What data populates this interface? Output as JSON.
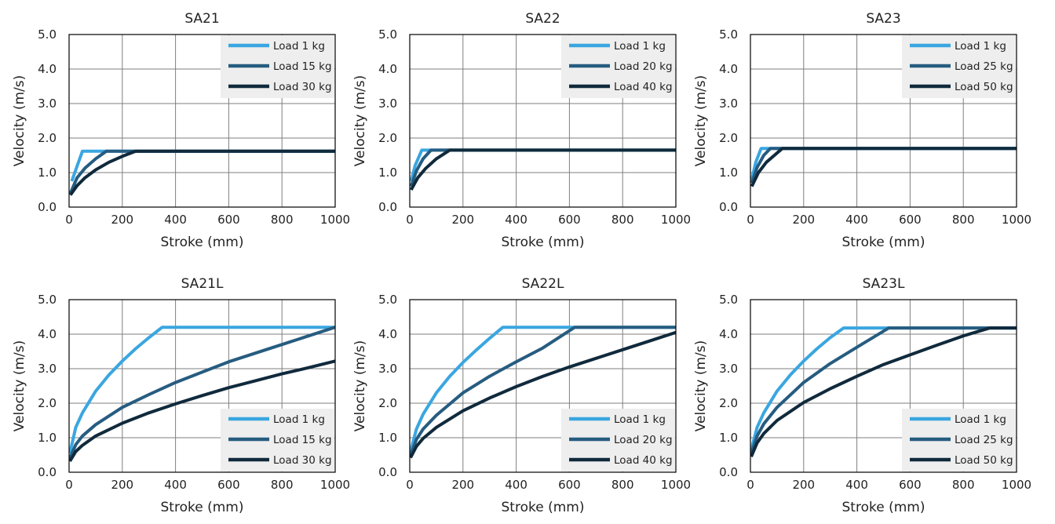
{
  "colors": {
    "s1": "#3aa6e0",
    "s2": "#265c80",
    "s3": "#102a3c"
  },
  "chart_data": [
    {
      "type": "line",
      "title": "SA21",
      "xlabel": "Stroke (mm)",
      "ylabel": "Velocity (m/s)",
      "xlim": [
        0,
        1000
      ],
      "ylim": [
        0,
        5
      ],
      "xticks": [
        "0",
        "200",
        "400",
        "600",
        "800",
        "1000"
      ],
      "yticks": [
        "0.0",
        "1.0",
        "2.0",
        "3.0",
        "4.0",
        "5.0"
      ],
      "grid": true,
      "legend_position": "top-right",
      "series": [
        {
          "name": "Load 1 kg",
          "color": "#3aa6e0",
          "x": [
            10,
            50,
            1000
          ],
          "y": [
            0.75,
            1.62,
            1.62
          ]
        },
        {
          "name": "Load 15 kg",
          "color": "#265c80",
          "x": [
            5,
            30,
            60,
            100,
            140,
            1000
          ],
          "y": [
            0.4,
            0.85,
            1.13,
            1.4,
            1.62,
            1.62
          ]
        },
        {
          "name": "Load 30 kg",
          "color": "#102a3c",
          "x": [
            5,
            30,
            60,
            100,
            150,
            200,
            250,
            1000
          ],
          "y": [
            0.35,
            0.62,
            0.85,
            1.08,
            1.3,
            1.47,
            1.62,
            1.62
          ]
        }
      ]
    },
    {
      "type": "line",
      "title": "SA22",
      "xlabel": "Stroke (mm)",
      "ylabel": "Velocity (m/s)",
      "xlim": [
        0,
        1000
      ],
      "ylim": [
        0,
        5
      ],
      "xticks": [
        "0",
        "200",
        "400",
        "600",
        "800",
        "1000"
      ],
      "yticks": [
        "0.0",
        "1.0",
        "2.0",
        "3.0",
        "4.0",
        "5.0"
      ],
      "grid": true,
      "legend_position": "top-right",
      "series": [
        {
          "name": "Load 1 kg",
          "color": "#3aa6e0",
          "x": [
            5,
            20,
            45,
            1000
          ],
          "y": [
            0.75,
            1.2,
            1.65,
            1.65
          ]
        },
        {
          "name": "Load 20 kg",
          "color": "#265c80",
          "x": [
            5,
            25,
            50,
            80,
            1000
          ],
          "y": [
            0.6,
            1.05,
            1.4,
            1.65,
            1.65
          ]
        },
        {
          "name": "Load 40 kg",
          "color": "#102a3c",
          "x": [
            5,
            30,
            60,
            100,
            150,
            1000
          ],
          "y": [
            0.5,
            0.85,
            1.12,
            1.4,
            1.65,
            1.65
          ]
        }
      ]
    },
    {
      "type": "line",
      "title": "SA23",
      "xlabel": "Stroke (mm)",
      "ylabel": "Velocity (m/s)",
      "xlim": [
        0,
        1000
      ],
      "ylim": [
        0,
        5
      ],
      "xticks": [
        "0",
        "200",
        "400",
        "600",
        "800",
        "1000"
      ],
      "yticks": [
        "0.0",
        "1.0",
        "2.0",
        "3.0",
        "4.0",
        "5.0"
      ],
      "grid": true,
      "legend_position": "top-right",
      "series": [
        {
          "name": "Load 1 kg",
          "color": "#3aa6e0",
          "x": [
            5,
            20,
            40,
            1000
          ],
          "y": [
            0.8,
            1.3,
            1.7,
            1.7
          ]
        },
        {
          "name": "Load 25 kg",
          "color": "#265c80",
          "x": [
            5,
            25,
            50,
            75,
            1000
          ],
          "y": [
            0.7,
            1.15,
            1.5,
            1.7,
            1.7
          ]
        },
        {
          "name": "Load 50 kg",
          "color": "#102a3c",
          "x": [
            5,
            30,
            60,
            90,
            120,
            1000
          ],
          "y": [
            0.6,
            1.0,
            1.3,
            1.5,
            1.7,
            1.7
          ]
        }
      ]
    },
    {
      "type": "line",
      "title": "SA21L",
      "xlabel": "Stroke (mm)",
      "ylabel": "Velocity (m/s)",
      "xlim": [
        0,
        1000
      ],
      "ylim": [
        0,
        5
      ],
      "xticks": [
        "0",
        "200",
        "400",
        "600",
        "800",
        "1000"
      ],
      "yticks": [
        "0.0",
        "1.0",
        "2.0",
        "3.0",
        "4.0",
        "5.0"
      ],
      "grid": true,
      "legend_position": "bottom-right",
      "series": [
        {
          "name": "Load 1 kg",
          "color": "#3aa6e0",
          "x": [
            3,
            25,
            50,
            100,
            150,
            200,
            250,
            300,
            350,
            1000
          ],
          "y": [
            0.55,
            1.3,
            1.72,
            2.35,
            2.82,
            3.22,
            3.58,
            3.9,
            4.2,
            4.2
          ]
        },
        {
          "name": "Load 15 kg",
          "color": "#265c80",
          "x": [
            3,
            25,
            50,
            100,
            200,
            300,
            400,
            500,
            600,
            700,
            800,
            900,
            1000
          ],
          "y": [
            0.4,
            0.8,
            1.05,
            1.38,
            1.88,
            2.25,
            2.6,
            2.9,
            3.2,
            3.45,
            3.7,
            3.95,
            4.2
          ]
        },
        {
          "name": "Load 30 kg",
          "color": "#102a3c",
          "x": [
            3,
            25,
            50,
            100,
            200,
            300,
            400,
            500,
            600,
            700,
            800,
            900,
            1000
          ],
          "y": [
            0.32,
            0.6,
            0.78,
            1.05,
            1.42,
            1.72,
            1.98,
            2.22,
            2.45,
            2.65,
            2.85,
            3.03,
            3.22
          ]
        }
      ]
    },
    {
      "type": "line",
      "title": "SA22L",
      "xlabel": "Stroke (mm)",
      "ylabel": "Velocity (m/s)",
      "xlim": [
        0,
        1000
      ],
      "ylim": [
        0,
        5
      ],
      "xticks": [
        "0",
        "200",
        "400",
        "600",
        "800",
        "1000"
      ],
      "yticks": [
        "0.0",
        "1.0",
        "2.0",
        "3.0",
        "4.0",
        "5.0"
      ],
      "grid": true,
      "legend_position": "bottom-right",
      "series": [
        {
          "name": "Load 1 kg",
          "color": "#3aa6e0",
          "x": [
            3,
            25,
            50,
            100,
            150,
            200,
            250,
            300,
            350,
            1000
          ],
          "y": [
            0.6,
            1.25,
            1.68,
            2.3,
            2.78,
            3.18,
            3.54,
            3.88,
            4.2,
            4.2
          ]
        },
        {
          "name": "Load 20 kg",
          "color": "#265c80",
          "x": [
            3,
            25,
            50,
            100,
            200,
            300,
            400,
            500,
            620,
            1000
          ],
          "y": [
            0.5,
            0.95,
            1.25,
            1.65,
            2.3,
            2.78,
            3.2,
            3.6,
            4.2,
            4.2
          ]
        },
        {
          "name": "Load 40 kg",
          "color": "#102a3c",
          "x": [
            3,
            25,
            50,
            100,
            200,
            300,
            400,
            500,
            600,
            700,
            800,
            900,
            1000
          ],
          "y": [
            0.42,
            0.75,
            0.98,
            1.3,
            1.78,
            2.15,
            2.48,
            2.78,
            3.05,
            3.3,
            3.55,
            3.8,
            4.05
          ]
        }
      ]
    },
    {
      "type": "line",
      "title": "SA23L",
      "xlabel": "Stroke (mm)",
      "ylabel": "Velocity (m/s)",
      "xlim": [
        0,
        1000
      ],
      "ylim": [
        0,
        5
      ],
      "xticks": [
        "0",
        "200",
        "400",
        "600",
        "800",
        "1000"
      ],
      "yticks": [
        "0.0",
        "1.0",
        "2.0",
        "3.0",
        "4.0",
        "5.0"
      ],
      "grid": true,
      "legend_position": "bottom-right",
      "series": [
        {
          "name": "Load 1 kg",
          "color": "#3aa6e0",
          "x": [
            3,
            25,
            50,
            100,
            150,
            200,
            250,
            300,
            350,
            1000
          ],
          "y": [
            0.65,
            1.3,
            1.72,
            2.35,
            2.82,
            3.22,
            3.58,
            3.9,
            4.18,
            4.18
          ]
        },
        {
          "name": "Load 25 kg",
          "color": "#265c80",
          "x": [
            3,
            25,
            50,
            100,
            200,
            300,
            400,
            520,
            1000
          ],
          "y": [
            0.55,
            1.05,
            1.4,
            1.88,
            2.6,
            3.15,
            3.62,
            4.18,
            4.18
          ]
        },
        {
          "name": "Load 50 kg",
          "color": "#102a3c",
          "x": [
            3,
            25,
            50,
            100,
            200,
            300,
            400,
            500,
            600,
            700,
            800,
            900,
            1000
          ],
          "y": [
            0.45,
            0.85,
            1.12,
            1.5,
            2.02,
            2.42,
            2.78,
            3.12,
            3.4,
            3.68,
            3.95,
            4.18,
            4.18
          ]
        }
      ]
    }
  ]
}
